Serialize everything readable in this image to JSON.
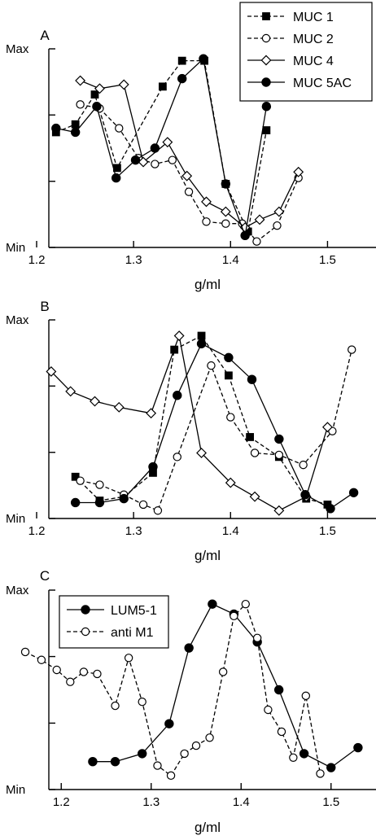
{
  "chart_data": [
    {
      "type": "line",
      "panel_label": "A",
      "xlabel": "g/ml",
      "xlim": [
        1.2,
        1.55
      ],
      "xticks": [
        "1.2",
        "1.3",
        "1.4",
        "1.5"
      ],
      "xtick_values": [
        1.2,
        1.3,
        1.4,
        1.5
      ],
      "yticks": [
        "Min",
        "Max"
      ],
      "ylim": [
        0,
        1
      ],
      "legend_position": "top-right",
      "series": [
        {
          "name": "MUC 1",
          "line": "dashed",
          "marker": "square-filled",
          "x": [
            1.22,
            1.24,
            1.26,
            1.283,
            1.33,
            1.35,
            1.373,
            1.395,
            1.418,
            1.437
          ],
          "y": [
            0.58,
            0.62,
            0.77,
            0.4,
            0.81,
            0.94,
            0.94,
            0.32,
            0.08,
            0.59
          ]
        },
        {
          "name": "MUC 2",
          "line": "dashed",
          "marker": "circle-open",
          "x": [
            1.245,
            1.265,
            1.285,
            1.305,
            1.322,
            1.34,
            1.357,
            1.375,
            1.395,
            1.412,
            1.427,
            1.448,
            1.47
          ],
          "y": [
            0.72,
            0.7,
            0.6,
            0.45,
            0.42,
            0.44,
            0.28,
            0.13,
            0.12,
            0.12,
            0.03,
            0.11,
            0.35
          ]
        },
        {
          "name": "MUC 4",
          "line": "solid",
          "marker": "diamond-open",
          "x": [
            1.245,
            1.265,
            1.29,
            1.31,
            1.335,
            1.355,
            1.375,
            1.395,
            1.415,
            1.43,
            1.45,
            1.47
          ],
          "y": [
            0.84,
            0.8,
            0.82,
            0.43,
            0.53,
            0.36,
            0.23,
            0.18,
            0.1,
            0.14,
            0.18,
            0.38
          ]
        },
        {
          "name": "MUC 5AC",
          "line": "solid",
          "marker": "circle-filled",
          "x": [
            1.22,
            1.24,
            1.262,
            1.282,
            1.302,
            1.322,
            1.35,
            1.372,
            1.395,
            1.415,
            1.437
          ],
          "y": [
            0.6,
            0.58,
            0.71,
            0.35,
            0.44,
            0.5,
            0.85,
            0.95,
            0.32,
            0.06,
            0.71
          ]
        }
      ]
    },
    {
      "type": "line",
      "panel_label": "B",
      "xlabel": "g/ml",
      "xlim": [
        1.2,
        1.55
      ],
      "xticks": [
        "1.2",
        "1.3",
        "1.4",
        "1.5"
      ],
      "xtick_values": [
        1.2,
        1.3,
        1.4,
        1.5
      ],
      "yticks": [
        "Min",
        "Max"
      ],
      "ylim": [
        0,
        1
      ],
      "series": [
        {
          "name": "MUC 1",
          "line": "dashed",
          "marker": "square-filled",
          "x": [
            1.24,
            1.265,
            1.29,
            1.32,
            1.342,
            1.37,
            1.398,
            1.42,
            1.45,
            1.478,
            1.5
          ],
          "y": [
            0.21,
            0.09,
            0.11,
            0.23,
            0.85,
            0.92,
            0.72,
            0.41,
            0.31,
            0.1,
            0.07
          ]
        },
        {
          "name": "MUC 2",
          "line": "dashed",
          "marker": "circle-open",
          "x": [
            1.245,
            1.265,
            1.29,
            1.31,
            1.325,
            1.345,
            1.38,
            1.4,
            1.425,
            1.45,
            1.475,
            1.505,
            1.525
          ],
          "y": [
            0.19,
            0.17,
            0.12,
            0.07,
            0.04,
            0.31,
            0.77,
            0.51,
            0.33,
            0.32,
            0.27,
            0.44,
            0.85
          ]
        },
        {
          "name": "MUC 4",
          "line": "solid",
          "marker": "diamond-open",
          "x": [
            1.215,
            1.235,
            1.26,
            1.285,
            1.318,
            1.347,
            1.37,
            1.4,
            1.425,
            1.45,
            1.478,
            1.5
          ],
          "y": [
            0.74,
            0.64,
            0.59,
            0.56,
            0.53,
            0.92,
            0.33,
            0.18,
            0.11,
            0.04,
            0.11,
            0.46
          ]
        },
        {
          "name": "MUC 5AC",
          "line": "solid",
          "marker": "circle-filled",
          "x": [
            1.24,
            1.265,
            1.29,
            1.32,
            1.345,
            1.37,
            1.398,
            1.422,
            1.45,
            1.477,
            1.503,
            1.527
          ],
          "y": [
            0.08,
            0.08,
            0.1,
            0.26,
            0.62,
            0.88,
            0.81,
            0.7,
            0.4,
            0.12,
            0.05,
            0.13
          ]
        }
      ]
    },
    {
      "type": "line",
      "panel_label": "C",
      "xlabel": "g/ml",
      "xlim": [
        1.15,
        1.55
      ],
      "xticks": [
        "1.2",
        "1.3",
        "1.4",
        "1.5"
      ],
      "xtick_values": [
        1.2,
        1.3,
        1.4,
        1.5
      ],
      "yticks": [
        "Min",
        "Max"
      ],
      "ylim": [
        0,
        1
      ],
      "legend_position": "top-left",
      "series": [
        {
          "name": "LUM5-1",
          "line": "solid",
          "marker": "circle-filled",
          "x": [
            1.235,
            1.26,
            1.29,
            1.32,
            1.342,
            1.368,
            1.392,
            1.418,
            1.442,
            1.47,
            1.5,
            1.53
          ],
          "y": [
            0.14,
            0.14,
            0.18,
            0.33,
            0.71,
            0.93,
            0.88,
            0.74,
            0.5,
            0.18,
            0.11,
            0.21
          ]
        },
        {
          "name": "anti M1",
          "line": "dashed",
          "marker": "circle-open",
          "x": [
            1.16,
            1.178,
            1.195,
            1.21,
            1.225,
            1.24,
            1.26,
            1.275,
            1.29,
            1.307,
            1.322,
            1.337,
            1.35,
            1.365,
            1.38,
            1.392,
            1.405,
            1.418,
            1.43,
            1.445,
            1.458,
            1.472,
            1.488
          ],
          "y": [
            0.69,
            0.65,
            0.6,
            0.54,
            0.59,
            0.58,
            0.42,
            0.66,
            0.44,
            0.12,
            0.07,
            0.18,
            0.22,
            0.26,
            0.59,
            0.87,
            0.93,
            0.76,
            0.4,
            0.29,
            0.16,
            0.47,
            0.08
          ]
        }
      ]
    }
  ]
}
